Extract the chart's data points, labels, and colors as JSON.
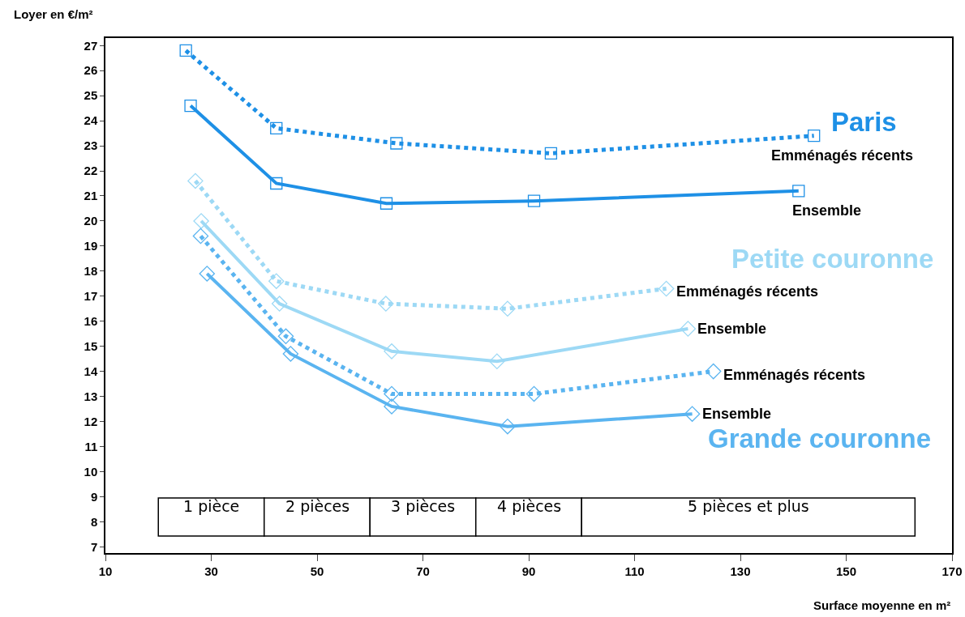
{
  "chart_data": {
    "type": "line",
    "xlabel": "Surface moyenne en m²",
    "ylabel": "Loyer en €/m²",
    "xlim": [
      10,
      170
    ],
    "xticks": [
      10,
      30,
      50,
      70,
      90,
      110,
      130,
      150,
      170
    ],
    "ylim": [
      6.75,
      27.3
    ],
    "yticks": [
      7,
      8,
      9,
      10,
      11,
      12,
      13,
      14,
      15,
      16,
      17,
      18,
      19,
      20,
      21,
      22,
      23,
      24,
      25,
      26,
      27
    ],
    "grid": false,
    "legend": false,
    "series": [
      {
        "name": "Emménagés récents",
        "color": "#1e90e6",
        "marker": "square",
        "line_style": "dotted",
        "x": [
          25.2,
          42.3,
          65.0,
          94.2,
          143.9
        ],
        "values": [
          26.8,
          23.7,
          23.1,
          22.7,
          23.4
        ]
      },
      {
        "name": "Ensemble",
        "color": "#1e90e6",
        "marker": "square",
        "line_style": "solid",
        "x": [
          26.1,
          42.3,
          63.1,
          91.0,
          141.0
        ],
        "values": [
          24.6,
          21.5,
          20.7,
          20.8,
          21.2
        ]
      },
      {
        "name": "Emménagés récents",
        "color": "#9dd9f5",
        "marker": "diamond",
        "line_style": "dotted",
        "x": [
          27.0,
          42.3,
          63.0,
          86.0,
          116.0
        ],
        "values": [
          21.6,
          17.6,
          16.7,
          16.5,
          17.3
        ]
      },
      {
        "name": "Ensemble",
        "color": "#9dd9f5",
        "marker": "diamond",
        "line_style": "solid",
        "x": [
          28.1,
          42.9,
          64.1,
          84.0,
          120.1
        ],
        "values": [
          20.0,
          16.7,
          14.8,
          14.4,
          15.7
        ]
      },
      {
        "name": "Emménagés récents",
        "color": "#5ab4f0",
        "marker": "diamond",
        "line_style": "dotted",
        "x": [
          28.0,
          44.1,
          64.1,
          91.0,
          124.9
        ],
        "values": [
          19.4,
          15.4,
          13.1,
          13.1,
          14.0
        ]
      },
      {
        "name": "Ensemble",
        "color": "#5ab4f0",
        "marker": "diamond",
        "line_style": "solid",
        "x": [
          29.2,
          45.0,
          64.1,
          86.0,
          120.9
        ],
        "values": [
          17.9,
          14.7,
          12.6,
          11.8,
          12.3
        ]
      }
    ],
    "annotations": [
      "Paris",
      "Petite couronne",
      "Grande couronne"
    ],
    "bands": [
      {
        "axis": "x",
        "from": 20,
        "to": 40,
        "label": "1 pièce"
      },
      {
        "axis": "x",
        "from": 40,
        "to": 60,
        "label": "2 pièces"
      },
      {
        "axis": "x",
        "from": 60,
        "to": 80,
        "label": "3 pièces"
      },
      {
        "axis": "x",
        "from": 80,
        "to": 100,
        "label": "4 pièces"
      },
      {
        "axis": "x",
        "from": 100,
        "to": 163,
        "label": "5 pièces et plus"
      }
    ]
  }
}
